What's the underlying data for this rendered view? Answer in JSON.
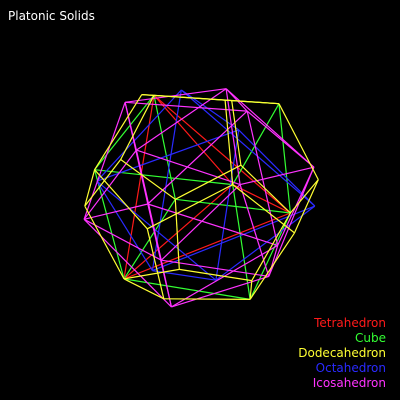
{
  "window": {
    "title": "Platonic Solids",
    "background": "#000000"
  },
  "legend": [
    {
      "label": "Tetrahedron",
      "color": "#ff1a1a"
    },
    {
      "label": "Cube",
      "color": "#33ff33"
    },
    {
      "label": "Dodecahedron",
      "color": "#ffff33"
    },
    {
      "label": "Octahedron",
      "color": "#2a2aff"
    },
    {
      "label": "Icosahedron",
      "color": "#ff33ff"
    }
  ]
}
